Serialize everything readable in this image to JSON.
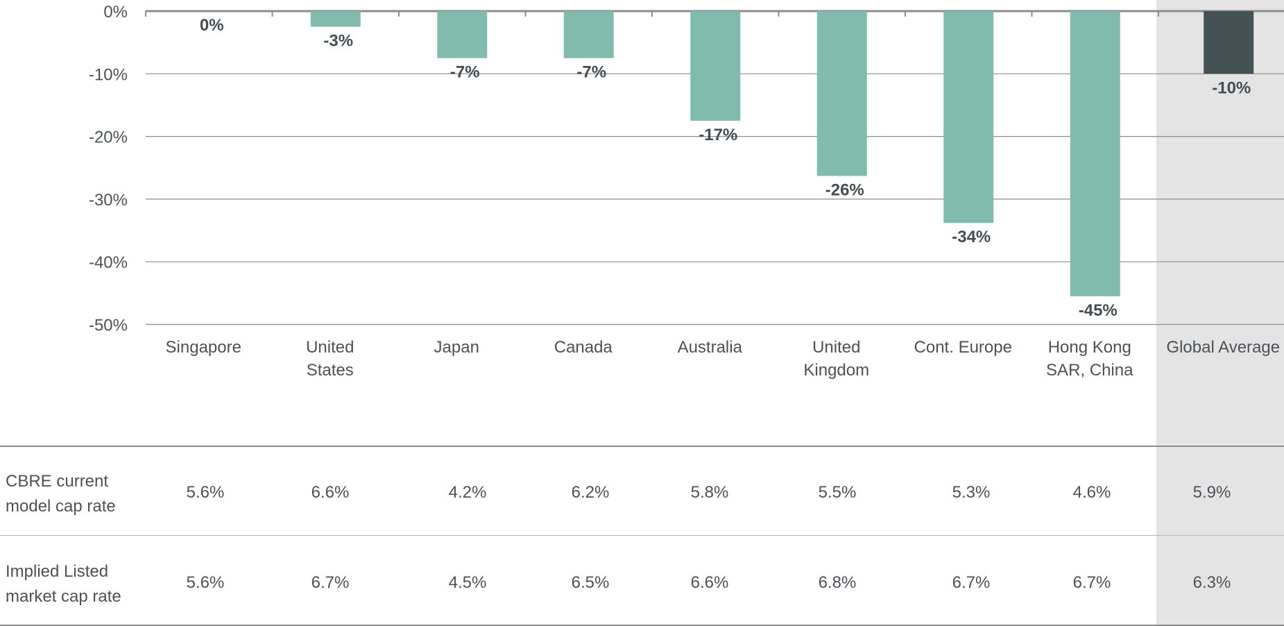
{
  "colors": {
    "bar": "#80bbad",
    "highlight_bar": "#435254",
    "highlight_bg": "#e4e4e4",
    "grid": "#8c8c8c",
    "text": "#4a5257"
  },
  "chart_data": {
    "type": "bar",
    "categories": [
      "Singapore",
      "United States",
      "Japan",
      "Canada",
      "Australia",
      "United Kingdom",
      "Cont. Europe",
      "Hong Kong SAR, China",
      "Global Average"
    ],
    "category_lines": [
      [
        "Singapore"
      ],
      [
        "United",
        "States"
      ],
      [
        "Japan"
      ],
      [
        "Canada"
      ],
      [
        "Australia"
      ],
      [
        "United",
        "Kingdom"
      ],
      [
        "Cont. Europe"
      ],
      [
        "Hong Kong",
        "SAR, China"
      ],
      [
        "Global Average"
      ]
    ],
    "values": [
      0,
      -2.5,
      -7.5,
      -7.5,
      -17.5,
      -26.3,
      -33.8,
      -45.5,
      -10
    ],
    "data_labels": [
      "0%",
      "-3%",
      "-7%",
      "-7%",
      "-17%",
      "-26%",
      "-34%",
      "-45%",
      "-10%"
    ],
    "highlighted_category": "Global Average",
    "ylim": [
      -50,
      0
    ],
    "yticks": [
      0,
      -10,
      -20,
      -30,
      -40,
      -50
    ],
    "ytick_labels": [
      "0%",
      "-10%",
      "-20%",
      "-30%",
      "-40%",
      "-50%"
    ],
    "grid": true
  },
  "table": {
    "rows": [
      {
        "label_lines": [
          "CBRE current",
          "model cap rate"
        ],
        "values": [
          "5.6%",
          "6.6%",
          "4.2%",
          "6.2%",
          "5.8%",
          "5.5%",
          "5.3%",
          "4.6%",
          "5.9%"
        ]
      },
      {
        "label_lines": [
          "Implied Listed",
          "market cap rate"
        ],
        "values": [
          "5.6%",
          "6.7%",
          "4.5%",
          "6.5%",
          "6.6%",
          "6.8%",
          "6.7%",
          "6.7%",
          "6.3%"
        ]
      }
    ]
  }
}
